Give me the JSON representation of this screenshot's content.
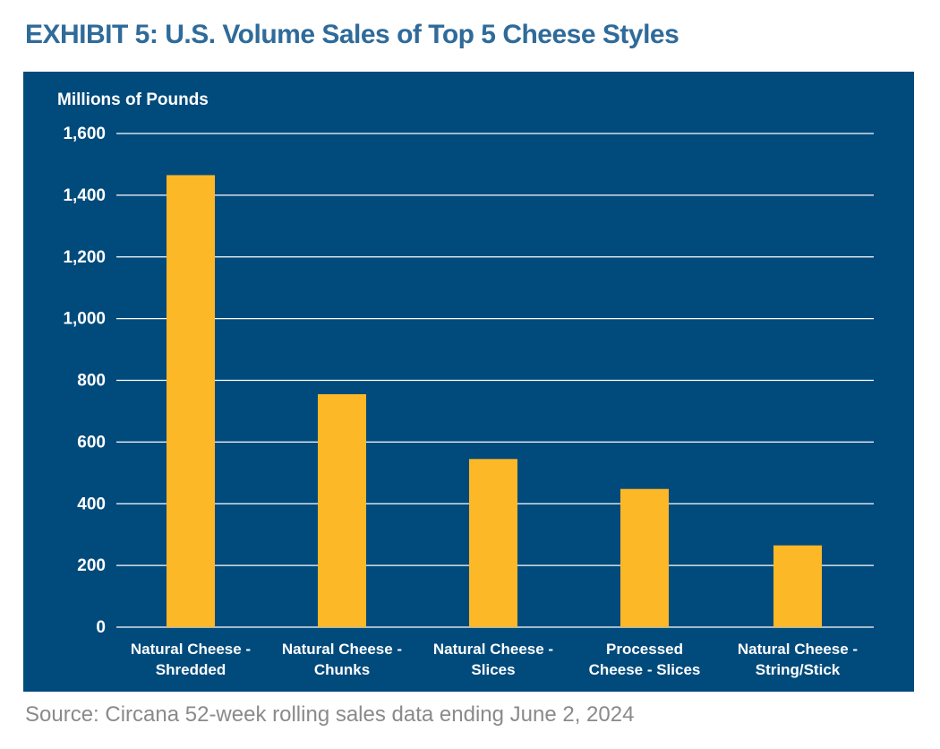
{
  "title": "EXHIBIT 5: U.S. Volume Sales of Top 5 Cheese Styles",
  "source": "Source: Circana 52-week rolling sales data ending June 2, 2024",
  "colors": {
    "panel_bg": "#004a7c",
    "bar": "#fdb827",
    "grid": "#ffffff",
    "text": "#ffffff",
    "title": "#2f6b9a",
    "source": "#8a8a8a"
  },
  "chart_data": {
    "type": "bar",
    "ylabel": "Millions of Pounds",
    "ylim": [
      0,
      1600
    ],
    "yticks": [
      0,
      200,
      400,
      600,
      800,
      1000,
      1200,
      1400,
      1600
    ],
    "ytick_labels": [
      "0",
      "200",
      "400",
      "600",
      "800",
      "1,000",
      "1,200",
      "1,400",
      "1,600"
    ],
    "grid": true,
    "categories": [
      [
        "Natural Cheese -",
        "Shredded"
      ],
      [
        "Natural Cheese -",
        "Chunks"
      ],
      [
        "Natural Cheese -",
        "Slices"
      ],
      [
        "Processed",
        "Cheese - Slices"
      ],
      [
        "Natural Cheese -",
        "String/Stick"
      ]
    ],
    "values": [
      1465,
      755,
      545,
      448,
      265
    ]
  }
}
